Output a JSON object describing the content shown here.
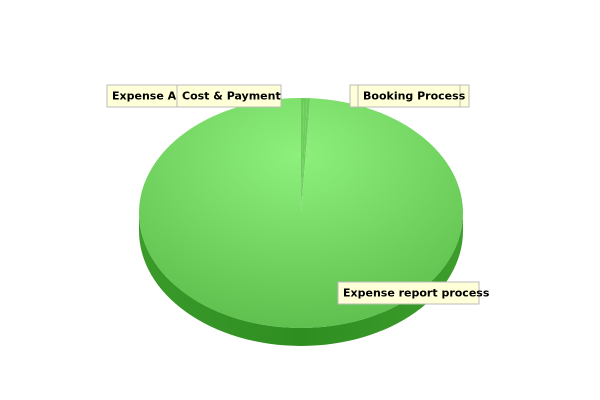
{
  "chart_data": {
    "type": "pie",
    "categories": [
      "Expense Ap",
      "Cost & Payment",
      "Booking Process",
      "Expense report process"
    ],
    "values": [
      0.3,
      0.3,
      0.3,
      99.1
    ],
    "colors": [
      "#6ccd5c",
      "#6ccd5c",
      "#6ccd5c",
      "#6ccd5c"
    ]
  }
}
